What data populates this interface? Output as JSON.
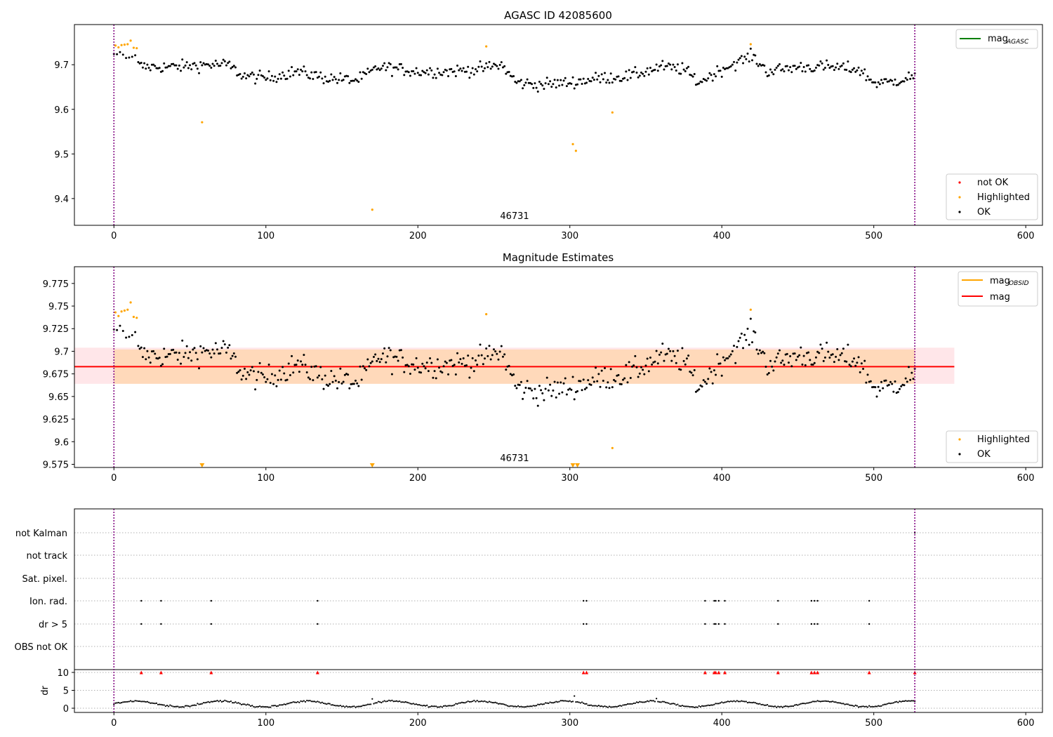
{
  "panel1": {
    "title": "AGASC ID 42085600",
    "obsid_label": "46731",
    "legend_line": {
      "label": "mag",
      "sub": "AGASC"
    },
    "legend_points": [
      "not OK",
      "Highlighted",
      "OK"
    ]
  },
  "panel2": {
    "title": "Magnitude Estimates",
    "obsid_label": "46731",
    "legend_lines": [
      {
        "label": "mag",
        "sub": "OBSID"
      },
      {
        "label": "mag",
        "sub": ""
      }
    ],
    "legend_points": [
      "Highlighted",
      "OK"
    ]
  },
  "panel3": {
    "flag_labels": [
      "not Kalman",
      "not track",
      "Sat. pixel.",
      "Ion. rad.",
      "dr > 5",
      "OBS not OK"
    ],
    "dr_label": "dr"
  },
  "colors": {
    "ok": "#000000",
    "highlighted": "#ffa500",
    "not_ok": "#ff0000",
    "mag_agasc": "#008000",
    "mag_obsid": "#ffa500",
    "mag": "#ff0000",
    "obs_boundary": "#800080"
  },
  "chart_data": [
    {
      "type": "scatter",
      "title": "AGASC ID 42085600",
      "xlim": [
        -26,
        611
      ],
      "ylim": [
        9.34,
        9.79
      ],
      "xticks": [
        0,
        100,
        200,
        300,
        400,
        500,
        600
      ],
      "yticks": [
        9.4,
        9.5,
        9.6,
        9.7
      ],
      "obs_boundaries": [
        0,
        527
      ],
      "series": [
        {
          "name": "OK",
          "note": "about 520 points, x = 0 to 527, mag between 9.64 and 9.73"
        },
        {
          "name": "Highlighted",
          "points": [
            [
              1,
              9.743
            ],
            [
              3,
              9.739
            ],
            [
              5,
              9.744
            ],
            [
              7,
              9.745
            ],
            [
              9,
              9.746
            ],
            [
              11,
              9.754
            ],
            [
              13,
              9.738
            ],
            [
              15,
              9.737
            ],
            [
              58,
              9.571
            ],
            [
              170,
              9.375
            ],
            [
              245,
              9.741
            ],
            [
              302,
              9.522
            ],
            [
              304,
              9.507
            ],
            [
              328,
              9.593
            ],
            [
              419,
              9.746
            ]
          ]
        }
      ],
      "annotation": "46731"
    },
    {
      "type": "scatter",
      "title": "Magnitude Estimates",
      "xlim": [
        -26,
        611
      ],
      "ylim": [
        9.5715,
        9.7935
      ],
      "xticks": [
        0,
        100,
        200,
        300,
        400,
        500,
        600
      ],
      "yticks": [
        9.575,
        9.6,
        9.625,
        9.65,
        9.675,
        9.7,
        9.725,
        9.75,
        9.775
      ],
      "obs_boundaries": [
        0,
        527
      ],
      "mag": 9.683,
      "mag_band_outer": [
        9.664,
        9.702
      ],
      "mag_band_inner": [
        9.664,
        9.704
      ],
      "band_x_range": [
        -26,
        553
      ],
      "series": [
        {
          "name": "OK",
          "note": "same points as panel 1"
        },
        {
          "name": "Highlighted",
          "points": [
            [
              1,
              9.743
            ],
            [
              3,
              9.739
            ],
            [
              5,
              9.744
            ],
            [
              7,
              9.745
            ],
            [
              9,
              9.746
            ],
            [
              11,
              9.754
            ],
            [
              13,
              9.738
            ],
            [
              15,
              9.737
            ],
            [
              245,
              9.741
            ],
            [
              328,
              9.593
            ],
            [
              419,
              9.746
            ]
          ]
        }
      ],
      "out_of_range_markers_x": [
        58,
        170,
        302,
        305
      ],
      "annotation": "46731"
    },
    {
      "type": "scatter",
      "title": "",
      "categories": [
        "not Kalman",
        "not track",
        "Sat. pixel.",
        "Ion. rad.",
        "dr > 5",
        "OBS not OK"
      ],
      "flag_x": {
        "Ion. rad.": [
          18,
          31,
          64,
          134,
          309,
          311,
          389,
          395,
          396,
          398,
          402,
          437,
          459,
          461,
          463,
          497
        ],
        "dr > 5": [
          18,
          31,
          64,
          134,
          309,
          311,
          389,
          395,
          396,
          398,
          402,
          437,
          459,
          461,
          463,
          497
        ],
        "not Kalman": [
          527
        ]
      },
      "obs_boundaries": [
        0,
        527
      ]
    },
    {
      "type": "scatter",
      "title": "",
      "ylabel": "dr",
      "xlim": [
        -26,
        611
      ],
      "ylim": [
        -0.5,
        11
      ],
      "xticks": [
        0,
        100,
        200,
        300,
        400,
        500,
        600
      ],
      "yticks": [
        0,
        5,
        10
      ],
      "clipped_at_10_x": [
        18,
        31,
        64,
        134,
        309,
        311,
        389,
        395,
        396,
        398,
        402,
        437,
        459,
        461,
        463,
        497,
        527
      ],
      "obs_boundaries": [
        0,
        527
      ],
      "note": "dr mostly 0.2 to 2.5, clipped values above 10 drawn as red triangles at 10"
    }
  ]
}
